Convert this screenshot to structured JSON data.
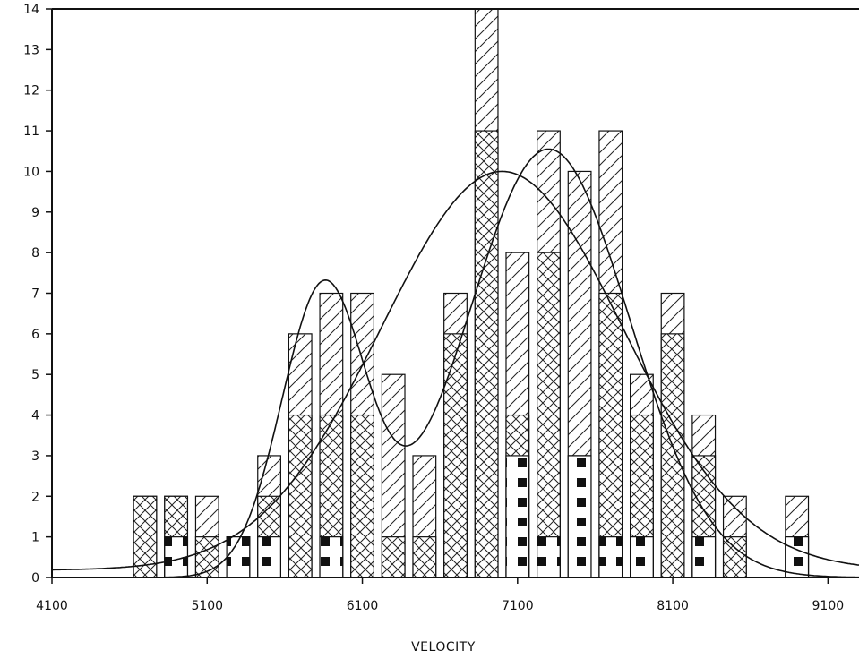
{
  "chart_data": {
    "type": "bar",
    "title": "",
    "xlabel": "VELOCITY",
    "ylabel": "",
    "xlim": [
      4100,
      9300
    ],
    "ylim": [
      0,
      14
    ],
    "x_ticks": [
      4100,
      5100,
      6100,
      7100,
      8100,
      9100
    ],
    "y_ticks": [
      0,
      1,
      2,
      3,
      4,
      5,
      6,
      7,
      8,
      9,
      10,
      11,
      12,
      13,
      14
    ],
    "grid": false,
    "legend": "none",
    "bin_width": 200,
    "x": [
      4700,
      4900,
      5100,
      5300,
      5500,
      5700,
      5900,
      6100,
      6300,
      6500,
      6700,
      6900,
      7100,
      7300,
      7500,
      7700,
      7900,
      8100,
      8300,
      8500,
      8900
    ],
    "series": [
      {
        "values": [
          2,
          2,
          2,
          1,
          3,
          6,
          7,
          7,
          5,
          3,
          7,
          14,
          8,
          11,
          10,
          11,
          5,
          7,
          4,
          2,
          2
        ]
      },
      {
        "values": [
          2,
          2,
          1,
          1,
          2,
          4,
          4,
          4,
          1,
          1,
          6,
          11,
          4,
          8,
          3,
          7,
          4,
          6,
          3,
          1,
          1
        ]
      },
      {
        "values": [
          0,
          1,
          0,
          1,
          1,
          0,
          1,
          0,
          0,
          0,
          0,
          0,
          3,
          1,
          3,
          1,
          1,
          0,
          1,
          0,
          1
        ]
      }
    ],
    "curves": [
      {
        "type": "single-gaussian",
        "mean": 7000,
        "sd": 780,
        "peak": 10,
        "floor": 0.18
      },
      {
        "type": "two-gaussian",
        "components": [
          {
            "mean": 5850,
            "sd": 270,
            "peak": 7.1
          },
          {
            "mean": 7300,
            "sd": 520,
            "peak": 10.55
          }
        ]
      }
    ]
  }
}
